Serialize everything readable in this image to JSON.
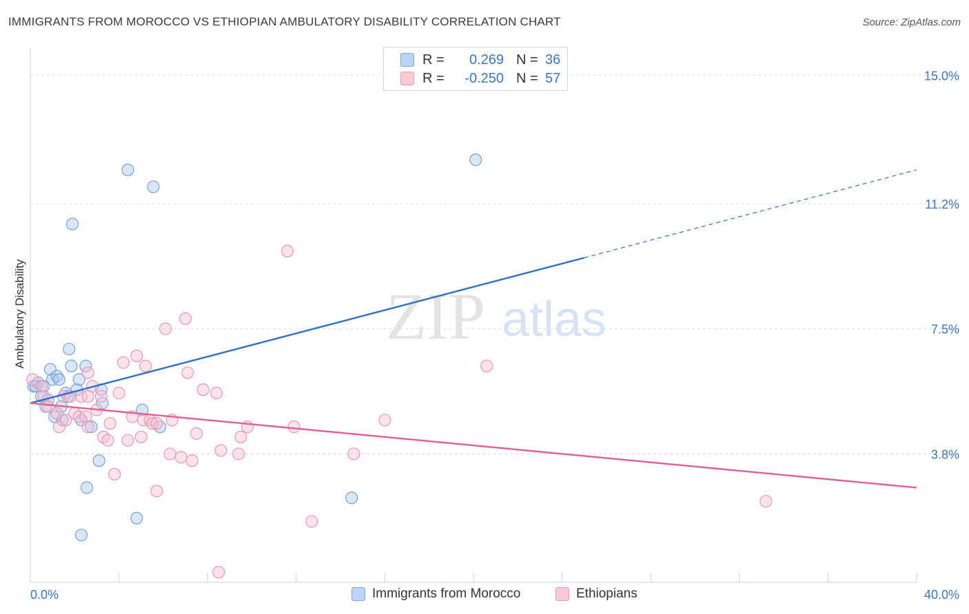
{
  "header": {
    "title": "IMMIGRANTS FROM MOROCCO VS ETHIOPIAN AMBULATORY DISABILITY CORRELATION CHART",
    "source": "Source: ZipAtlas.com"
  },
  "watermark": {
    "zip": "ZIP",
    "atlas": "atlas"
  },
  "legend_top": {
    "rows": [
      {
        "r_label": "R =",
        "r_value": "0.269",
        "n_label": "N =",
        "n_value": "36"
      },
      {
        "r_label": "R =",
        "r_value": "-0.250",
        "n_label": "N =",
        "n_value": "57"
      }
    ]
  },
  "legend_bottom": {
    "series_a": "Immigrants from Morocco",
    "series_b": "Ethiopians"
  },
  "colors": {
    "blue_fill": "#a9c8f0",
    "blue_stroke": "#6f9ad6",
    "blue_line": "#2e6fcb",
    "pink_fill": "#f7bfd2",
    "pink_stroke": "#e890ae",
    "pink_line": "#e0608e",
    "tick_text": "#3a76c6",
    "grid": "#dddddd"
  },
  "chart_data": {
    "type": "scatter",
    "title": "IMMIGRANTS FROM MOROCCO VS ETHIOPIAN AMBULATORY DISABILITY CORRELATION CHART",
    "xlabel": "",
    "ylabel": "Ambulatory Disability",
    "xlim": [
      0,
      40
    ],
    "ylim": [
      0,
      15.8
    ],
    "x_tick_labels": [
      "0.0%",
      "40.0%"
    ],
    "y_ticks": [
      3.8,
      7.5,
      11.2,
      15.0
    ],
    "y_tick_labels": [
      "3.8%",
      "7.5%",
      "11.2%",
      "15.0%"
    ],
    "series": [
      {
        "name": "Immigrants from Morocco",
        "color": "blue",
        "points": [
          [
            0.15,
            5.8
          ],
          [
            0.35,
            5.9
          ],
          [
            0.5,
            5.5
          ],
          [
            0.7,
            5.2
          ],
          [
            0.8,
            5.4
          ],
          [
            0.9,
            6.3
          ],
          [
            1.0,
            6.0
          ],
          [
            1.1,
            4.9
          ],
          [
            1.2,
            6.1
          ],
          [
            1.4,
            5.2
          ],
          [
            1.45,
            4.8
          ],
          [
            1.6,
            5.6
          ],
          [
            1.7,
            5.5
          ],
          [
            1.75,
            6.9
          ],
          [
            1.85,
            6.4
          ],
          [
            1.9,
            10.6
          ],
          [
            2.1,
            5.7
          ],
          [
            2.2,
            6.0
          ],
          [
            2.3,
            1.4
          ],
          [
            2.3,
            4.8
          ],
          [
            2.5,
            6.4
          ],
          [
            2.55,
            2.8
          ],
          [
            2.75,
            4.6
          ],
          [
            3.1,
            3.6
          ],
          [
            3.2,
            5.7
          ],
          [
            3.25,
            5.3
          ],
          [
            4.4,
            12.2
          ],
          [
            4.8,
            1.9
          ],
          [
            5.05,
            5.1
          ],
          [
            5.55,
            11.7
          ],
          [
            5.85,
            4.6
          ],
          [
            14.5,
            2.5
          ],
          [
            20.1,
            12.5
          ],
          [
            0.25,
            5.8
          ],
          [
            0.6,
            5.8
          ],
          [
            1.3,
            6.0
          ]
        ],
        "trend": {
          "x0": 0,
          "y0": 5.3,
          "x1": 25,
          "y1": 9.6,
          "x_ext": 40,
          "y_ext": 12.2
        }
      },
      {
        "name": "Ethiopians",
        "color": "pink",
        "points": [
          [
            0.1,
            6.0
          ],
          [
            0.5,
            5.8
          ],
          [
            0.6,
            5.5
          ],
          [
            0.8,
            5.2
          ],
          [
            1.2,
            5.0
          ],
          [
            1.3,
            4.6
          ],
          [
            1.5,
            5.5
          ],
          [
            1.6,
            4.8
          ],
          [
            1.8,
            5.5
          ],
          [
            2.0,
            5.0
          ],
          [
            2.2,
            4.9
          ],
          [
            2.3,
            5.5
          ],
          [
            2.5,
            4.9
          ],
          [
            2.6,
            4.6
          ],
          [
            2.6,
            5.5
          ],
          [
            2.6,
            6.2
          ],
          [
            2.8,
            5.8
          ],
          [
            3.0,
            5.1
          ],
          [
            3.2,
            5.5
          ],
          [
            3.3,
            4.3
          ],
          [
            3.5,
            4.2
          ],
          [
            3.6,
            4.7
          ],
          [
            3.8,
            3.2
          ],
          [
            4.0,
            5.6
          ],
          [
            4.2,
            6.5
          ],
          [
            4.4,
            4.2
          ],
          [
            4.6,
            4.9
          ],
          [
            4.8,
            6.7
          ],
          [
            5.0,
            4.3
          ],
          [
            5.1,
            4.8
          ],
          [
            5.2,
            6.4
          ],
          [
            5.4,
            4.8
          ],
          [
            5.5,
            4.7
          ],
          [
            5.7,
            4.7
          ],
          [
            5.7,
            2.7
          ],
          [
            6.1,
            7.5
          ],
          [
            6.3,
            3.8
          ],
          [
            6.4,
            4.8
          ],
          [
            6.8,
            3.7
          ],
          [
            7.0,
            7.8
          ],
          [
            7.1,
            6.2
          ],
          [
            7.3,
            3.6
          ],
          [
            7.5,
            4.4
          ],
          [
            7.8,
            5.7
          ],
          [
            8.4,
            5.6
          ],
          [
            8.5,
            0.3
          ],
          [
            8.6,
            3.9
          ],
          [
            9.4,
            3.8
          ],
          [
            9.5,
            4.3
          ],
          [
            9.8,
            4.6
          ],
          [
            11.6,
            9.8
          ],
          [
            11.9,
            4.6
          ],
          [
            12.7,
            1.8
          ],
          [
            14.6,
            3.8
          ],
          [
            16.0,
            4.8
          ],
          [
            20.6,
            6.4
          ],
          [
            33.2,
            2.4
          ]
        ],
        "trend": {
          "x0": 0,
          "y0": 5.3,
          "x1": 40,
          "y1": 2.8
        }
      }
    ]
  }
}
